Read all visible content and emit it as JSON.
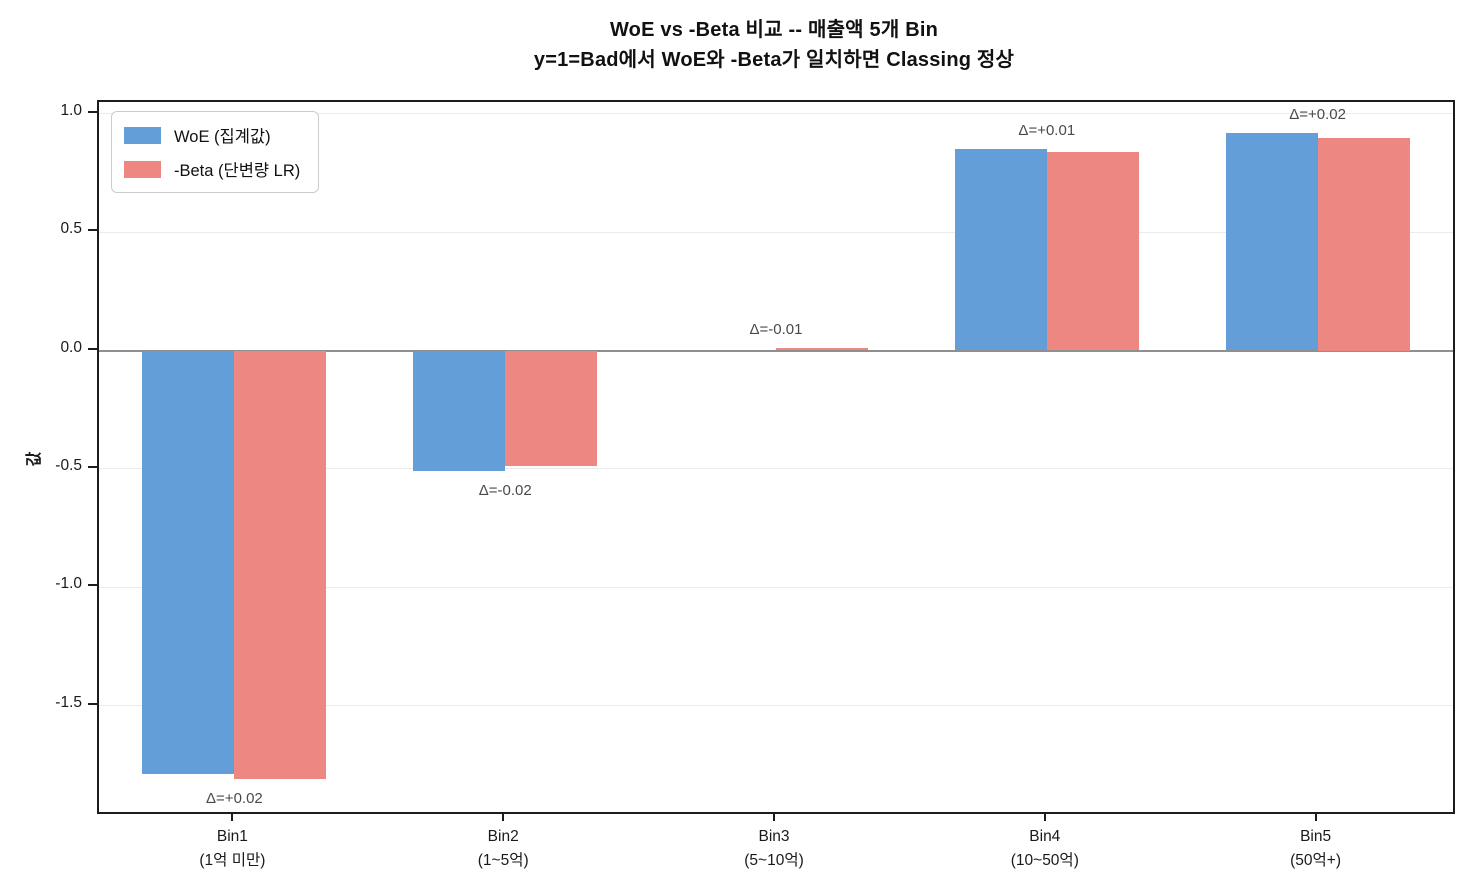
{
  "chart_data": {
    "type": "bar",
    "title": "WoE vs -Beta 비교 -- 매출액 5개 Bin",
    "subtitle": "y=1=Bad에서 WoE와 -Beta가 일치하면 Classing 정상",
    "ylabel": "값",
    "categories": [
      {
        "name": "Bin1",
        "range": "(1억 미만)"
      },
      {
        "name": "Bin2",
        "range": "(1~5억)"
      },
      {
        "name": "Bin3",
        "range": "(5~10억)"
      },
      {
        "name": "Bin4",
        "range": "(10~50억)"
      },
      {
        "name": "Bin5",
        "range": "(50억+)"
      }
    ],
    "series": [
      {
        "name": "WoE (집계값)",
        "color": "#639ed9",
        "values": [
          -1.79,
          -0.51,
          0.0,
          0.85,
          0.92
        ]
      },
      {
        "name": "-Beta (단변량 LR)",
        "color": "#ec8781",
        "values": [
          -1.81,
          -0.49,
          0.01,
          0.84,
          0.9
        ]
      }
    ],
    "delta_labels": [
      "Δ=+0.02",
      "Δ=-0.02",
      "Δ=-0.01",
      "Δ=+0.01",
      "Δ=+0.02"
    ],
    "yticks": [
      1.0,
      0.5,
      0.0,
      -0.5,
      -1.0,
      -1.5
    ],
    "ylim": [
      -1.95,
      1.05
    ],
    "grid": true,
    "zero_line": true,
    "legend_position": "upper-left"
  },
  "legend": {
    "items": [
      {
        "label": "WoE (집계값)",
        "color": "#639ed9"
      },
      {
        "label": "-Beta (단변량 LR)",
        "color": "#ec8781"
      }
    ]
  }
}
